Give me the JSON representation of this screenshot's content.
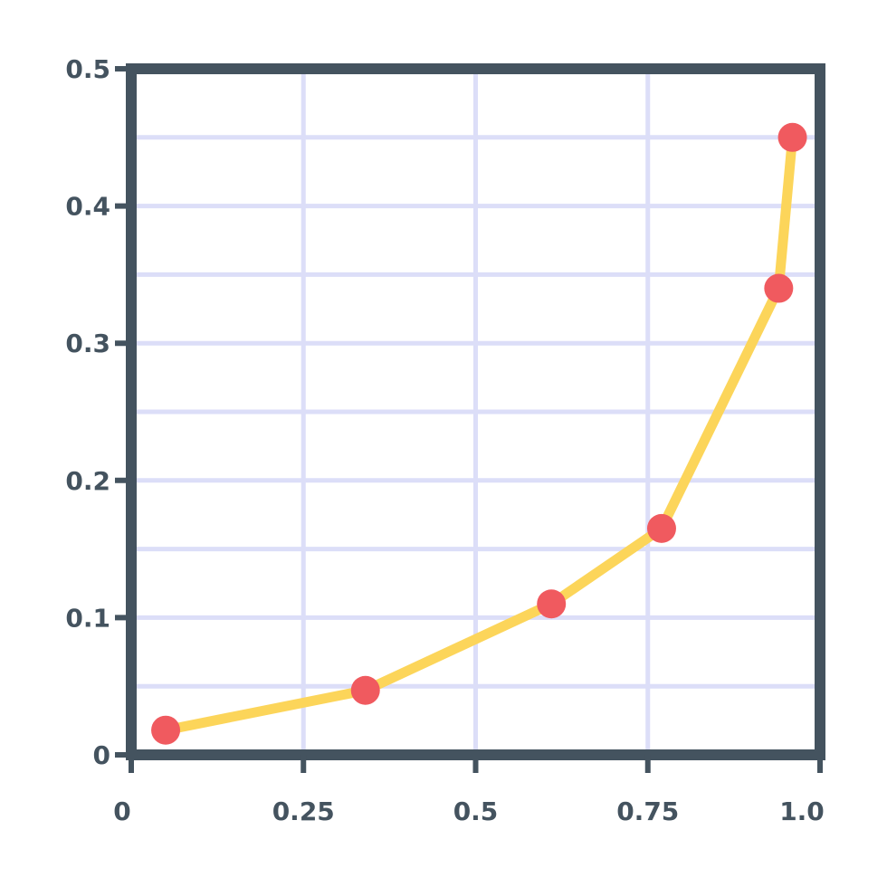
{
  "chart_data": {
    "type": "line",
    "title": "",
    "xlabel": "",
    "ylabel": "",
    "xlim": [
      0,
      1.0
    ],
    "ylim": [
      0,
      0.5
    ],
    "x_ticks": [
      "0",
      "0.25",
      "0.5",
      "0.75",
      "1.0"
    ],
    "x_tick_values": [
      0,
      0.25,
      0.5,
      0.75,
      1.0
    ],
    "y_ticks": [
      "0",
      "0.1",
      "0.2",
      "0.3",
      "0.4",
      "0.5"
    ],
    "y_tick_values": [
      0,
      0.1,
      0.2,
      0.3,
      0.4,
      0.5
    ],
    "grid": true,
    "legend": "none",
    "series": [
      {
        "x": [
          0.05,
          0.34,
          0.61,
          0.77,
          0.94,
          0.96
        ],
        "y": [
          0.018,
          0.047,
          0.11,
          0.165,
          0.34,
          0.45
        ]
      }
    ],
    "colors": {
      "axis": "#44535f",
      "grid": "#dcdef8",
      "line": "#fcd55a",
      "marker": "#f05a5f",
      "text": "#44535f"
    }
  }
}
